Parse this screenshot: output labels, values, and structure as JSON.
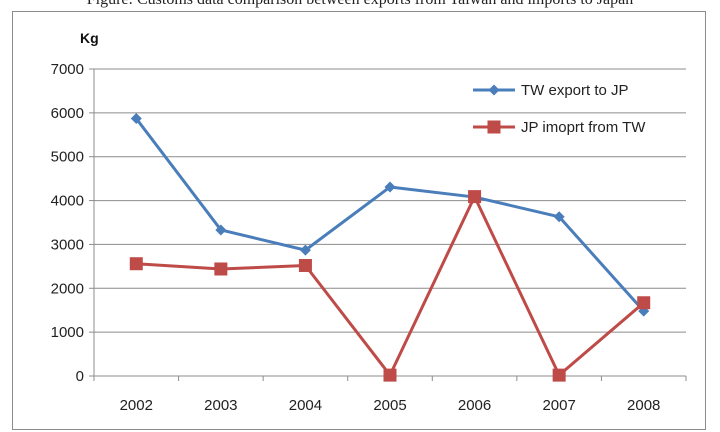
{
  "caption": "Figure: Customs data comparison between exports from Taiwan and imports to Japan",
  "chart_data": {
    "type": "line",
    "title": "",
    "xlabel": "",
    "ylabel": "Kg",
    "categories": [
      "2002",
      "2003",
      "2004",
      "2005",
      "2006",
      "2007",
      "2008"
    ],
    "ylim": [
      0,
      7000
    ],
    "yticks": [
      "0",
      "1000",
      "2000",
      "3000",
      "4000",
      "5000",
      "6000",
      "7000"
    ],
    "grid": true,
    "legend_position": "top-right",
    "series": [
      {
        "name": "TW export to JP",
        "color": "#4a7ebb",
        "marker": "diamond",
        "values": [
          5870,
          3330,
          2870,
          4310,
          4080,
          3630,
          1480
        ]
      },
      {
        "name": "JP imoprt from TW",
        "color": "#be4b48",
        "marker": "square",
        "values": [
          2560,
          2440,
          2520,
          20,
          4090,
          20,
          1670
        ]
      }
    ]
  }
}
